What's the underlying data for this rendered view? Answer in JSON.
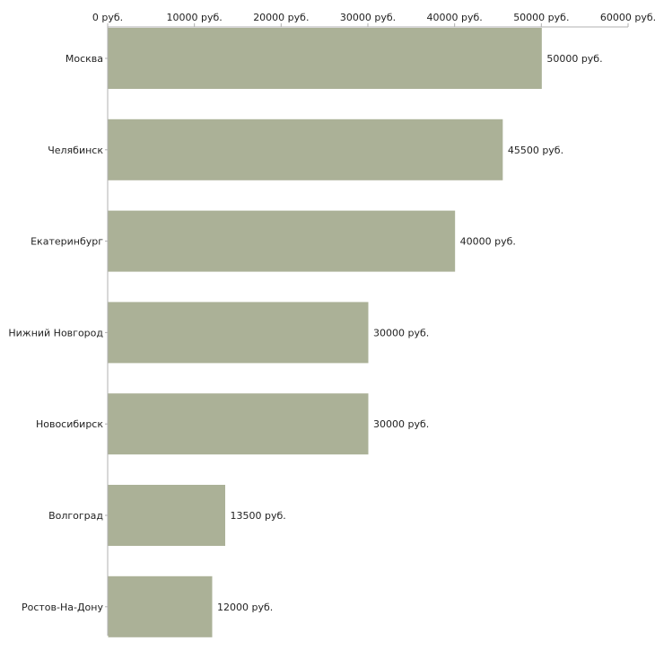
{
  "chart_data": {
    "type": "bar",
    "orientation": "horizontal",
    "title": "",
    "xlabel": "",
    "ylabel": "",
    "categories": [
      "Москва",
      "Челябинск",
      "Екатеринбург",
      "Нижний Новгород",
      "Новосибирск",
      "Волгоград",
      "Ростов-На-Дону"
    ],
    "values": [
      50000,
      45500,
      40000,
      30000,
      30000,
      13500,
      12000
    ],
    "value_labels": [
      "50000 руб.",
      "45500 руб.",
      "40000 руб.",
      "30000 руб.",
      "30000 руб.",
      "13500 руб.",
      "12000 руб."
    ],
    "xlim": [
      0,
      60000
    ],
    "ticks": [
      0,
      10000,
      20000,
      30000,
      40000,
      50000,
      60000
    ],
    "tick_labels": [
      "0 руб.",
      "10000 руб.",
      "20000 руб.",
      "30000 руб.",
      "40000 руб.",
      "50000 руб.",
      "60000 руб."
    ],
    "axis_position": "top",
    "grid": false,
    "legend": "none",
    "colors": {
      "bar": "#abb197",
      "axis": "#b0b0b0",
      "text": "#222222"
    }
  }
}
